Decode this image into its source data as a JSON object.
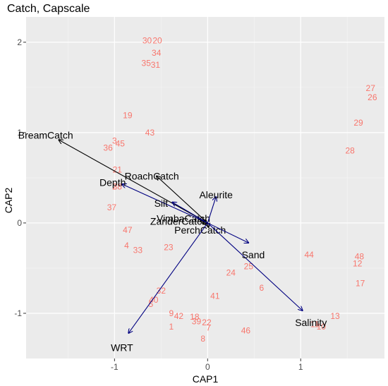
{
  "chart_data": {
    "type": "scatter",
    "title": "Catch, Capscale",
    "xlabel": "CAP1",
    "ylabel": "CAP2",
    "xlim": [
      -1.95,
      1.9
    ],
    "ylim": [
      -1.5,
      2.28
    ],
    "x_ticks": [
      -1,
      0,
      1
    ],
    "y_ticks": [
      -1,
      0,
      1,
      2
    ],
    "grid": true,
    "colors": {
      "panel": "#ebebeb",
      "grid_major": "#ffffff",
      "grid_minor": "#f5f5f5",
      "site_label": "#f8766d",
      "species_arrow": "#000000",
      "env_arrow": "#000080"
    },
    "site_scores": [
      {
        "label": "30",
        "x": -0.65,
        "y": 2.02
      },
      {
        "label": "20",
        "x": -0.54,
        "y": 2.02
      },
      {
        "label": "34",
        "x": -0.55,
        "y": 1.88
      },
      {
        "label": "35",
        "x": -0.66,
        "y": 1.77
      },
      {
        "label": "31",
        "x": -0.56,
        "y": 1.75
      },
      {
        "label": "19",
        "x": -0.86,
        "y": 1.19
      },
      {
        "label": "43",
        "x": -0.62,
        "y": 1.0
      },
      {
        "label": "3",
        "x": -1.0,
        "y": 0.91
      },
      {
        "label": "45",
        "x": -0.94,
        "y": 0.88
      },
      {
        "label": "36",
        "x": -1.07,
        "y": 0.83
      },
      {
        "label": "21",
        "x": -0.97,
        "y": 0.59
      },
      {
        "label": "2",
        "x": -1.0,
        "y": 0.4
      },
      {
        "label": "38",
        "x": -0.97,
        "y": 0.4
      },
      {
        "label": "37",
        "x": -1.03,
        "y": 0.17
      },
      {
        "label": "47",
        "x": -0.86,
        "y": -0.08
      },
      {
        "label": "4",
        "x": -0.87,
        "y": -0.25
      },
      {
        "label": "33",
        "x": -0.75,
        "y": -0.3
      },
      {
        "label": "23",
        "x": -0.42,
        "y": -0.27
      },
      {
        "label": "32",
        "x": -0.5,
        "y": -0.75
      },
      {
        "label": "40",
        "x": -0.58,
        "y": -0.85
      },
      {
        "label": "5",
        "x": -0.61,
        "y": -0.9
      },
      {
        "label": "9",
        "x": -0.39,
        "y": -1.0
      },
      {
        "label": "42",
        "x": -0.31,
        "y": -1.03
      },
      {
        "label": "18",
        "x": -0.14,
        "y": -1.04
      },
      {
        "label": "39",
        "x": -0.12,
        "y": -1.09
      },
      {
        "label": "22",
        "x": -0.01,
        "y": -1.1
      },
      {
        "label": "1",
        "x": -0.39,
        "y": -1.15
      },
      {
        "label": "7",
        "x": 0.01,
        "y": -1.16
      },
      {
        "label": "8",
        "x": -0.05,
        "y": -1.28
      },
      {
        "label": "46",
        "x": 0.41,
        "y": -1.19
      },
      {
        "label": "41",
        "x": 0.08,
        "y": -0.81
      },
      {
        "label": "24",
        "x": 0.25,
        "y": -0.55
      },
      {
        "label": "25",
        "x": 0.44,
        "y": -0.48
      },
      {
        "label": "6",
        "x": 0.58,
        "y": -0.72
      },
      {
        "label": "44",
        "x": 1.09,
        "y": -0.35
      },
      {
        "label": "13",
        "x": 1.37,
        "y": -1.03
      },
      {
        "label": "11",
        "x": 1.15,
        "y": -1.12
      },
      {
        "label": "10",
        "x": 1.22,
        "y": -1.15
      },
      {
        "label": "48",
        "x": 1.63,
        "y": -0.37
      },
      {
        "label": "12",
        "x": 1.61,
        "y": -0.45
      },
      {
        "label": "17",
        "x": 1.64,
        "y": -0.67
      },
      {
        "label": "27",
        "x": 1.75,
        "y": 1.49
      },
      {
        "label": "26",
        "x": 1.77,
        "y": 1.39
      },
      {
        "label": "29",
        "x": 1.62,
        "y": 1.11
      },
      {
        "label": "28",
        "x": 1.53,
        "y": 0.8
      }
    ],
    "species_arrows": [
      {
        "label": "BreamCatch",
        "x": -1.6,
        "y": 0.92,
        "text_x": -1.74,
        "text_y": 0.97
      },
      {
        "label": "RoachCatch",
        "x": -0.55,
        "y": 0.52,
        "text_x": -0.6,
        "text_y": 0.52
      },
      {
        "label": "VimbaCatch",
        "x": -0.08,
        "y": 0.02,
        "text_x": -0.26,
        "text_y": 0.05
      },
      {
        "label": "ZanderCatch",
        "x": -0.05,
        "y": -0.01,
        "text_x": -0.31,
        "text_y": 0.02
      },
      {
        "label": "PerchCatch",
        "x": 0.01,
        "y": -0.05,
        "text_x": -0.08,
        "text_y": -0.08
      }
    ],
    "env_arrows": [
      {
        "label": "Depth",
        "x": -0.92,
        "y": 0.43,
        "text_x": -1.02,
        "text_y": 0.45
      },
      {
        "label": "Silt",
        "x": -0.38,
        "y": 0.23,
        "text_x": -0.5,
        "text_y": 0.22
      },
      {
        "label": "Aleurite",
        "x": 0.09,
        "y": 0.29,
        "text_x": 0.09,
        "text_y": 0.31
      },
      {
        "label": "Sand",
        "x": 0.44,
        "y": -0.22,
        "text_x": 0.49,
        "text_y": -0.35
      },
      {
        "label": "Salinity",
        "x": 1.02,
        "y": -0.97,
        "text_x": 1.11,
        "text_y": -1.1
      },
      {
        "label": "WRT",
        "x": -0.85,
        "y": -1.22,
        "text_x": -0.92,
        "text_y": -1.38
      }
    ]
  }
}
